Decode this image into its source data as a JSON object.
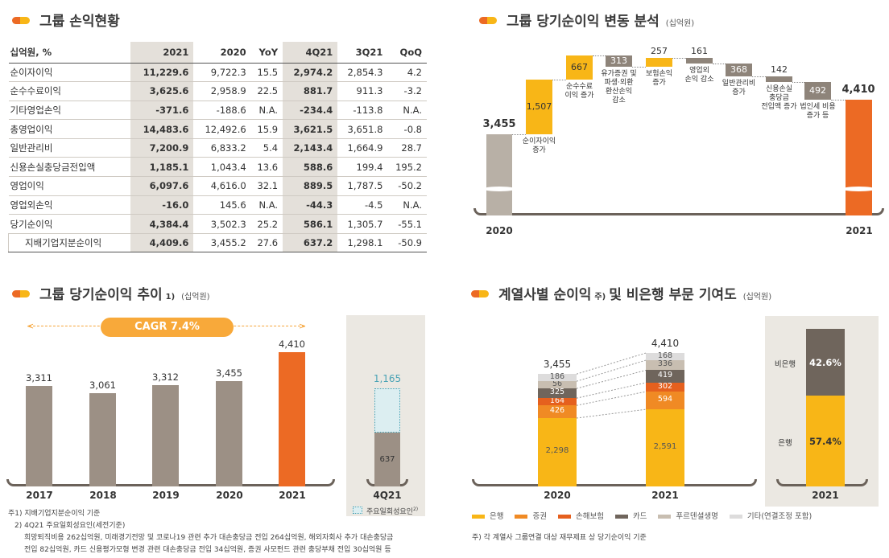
{
  "section1": {
    "title": "그룹 손익현황",
    "headers": [
      "십억원, %",
      "2021",
      "2020",
      "YoY",
      "4Q21",
      "3Q21",
      "QoQ"
    ],
    "rows": [
      [
        "순이자이익",
        "11,229.6",
        "9,722.3",
        "15.5",
        "2,974.2",
        "2,854.3",
        "4.2"
      ],
      [
        "순수수료이익",
        "3,625.6",
        "2,958.9",
        "22.5",
        "881.7",
        "911.3",
        "-3.2"
      ],
      [
        "기타영업손익",
        "-371.6",
        "-188.6",
        "N.A.",
        "-234.4",
        "-113.8",
        "N.A."
      ],
      [
        "총영업이익",
        "14,483.6",
        "12,492.6",
        "15.9",
        "3,621.5",
        "3,651.8",
        "-0.8"
      ],
      [
        "일반관리비",
        "7,200.9",
        "6,833.2",
        "5.4",
        "2,143.4",
        "1,664.9",
        "28.7"
      ],
      [
        "신용손실충당금전입액",
        "1,185.1",
        "1,043.4",
        "13.6",
        "588.6",
        "199.4",
        "195.2"
      ],
      [
        "영업이익",
        "6,097.6",
        "4,616.0",
        "32.1",
        "889.5",
        "1,787.5",
        "-50.2"
      ],
      [
        "영업외손익",
        "-16.0",
        "145.6",
        "N.A.",
        "-44.3",
        "-4.5",
        "N.A."
      ],
      [
        "당기순이익",
        "4,384.4",
        "3,502.3",
        "25.2",
        "586.1",
        "1,305.7",
        "-55.1"
      ],
      [
        "지배기업지분순이익",
        "4,409.6",
        "3,455.2",
        "27.6",
        "637.2",
        "1,298.1",
        "-50.9"
      ]
    ]
  },
  "section2": {
    "title": "그룹 당기순이익 변동 분석",
    "unit": "(십억원)"
  },
  "section3": {
    "title": "그룹 당기순이익 추이",
    "sup": "1)",
    "unit": "(십억원)",
    "cagr": "CAGR 7.4%",
    "quarter_panel": {
      "label": "4Q21",
      "legend": "주요일회성요인",
      "legend_sup": "2)"
    }
  },
  "section4": {
    "title": "계열사별 순이익",
    "title_sup": "주)",
    "title_rest": "및 비은행 부문 기여도",
    "unit": "(십억원)",
    "share_panel": {
      "year": "2021",
      "labels": [
        "비은행",
        "은행"
      ]
    },
    "footnote": "주) 각 계열사 그룹연결 대상 재무제표 상 당기순이익 기준"
  },
  "notes": [
    "주1) 지배기업지분순이익 기준",
    "2) 4Q21 주요일회성요인(세전기준)",
    "희망퇴직비용 262십억원, 미래경기전망 및 코로나19 관련 추가 대손충당금 전입 264십억원, 해외자회사 추가 대손충당금",
    "전입 82십억원, 카드 신용평가모형 변경 관련 대손충당금 전입 34십억원, 증권 사모펀드 관련 충당부채 전입 30십억원 등"
  ],
  "colors": {
    "yellow": "#f8b617",
    "orange": "#ec6a24",
    "gray": "#9c9085",
    "start_gray": "#b8b0a6",
    "neg_gray": "#8e847a",
    "teal": "#4aa3b5"
  },
  "chart_data": [
    {
      "type": "bar",
      "subtype": "waterfall",
      "start": {
        "label": "2020",
        "value": 3455,
        "display": "3,455"
      },
      "end": {
        "label": "2021",
        "value": 4410,
        "display": "4,410"
      },
      "steps": [
        {
          "label": "순이자이익\n증가",
          "value": 1507,
          "display": "1,507"
        },
        {
          "label": "순수수료\n이익 증가",
          "value": 667,
          "display": "667"
        },
        {
          "label": "유가증권 및\n파생·외환\n환산손익\n감소",
          "value": -313,
          "display": "313"
        },
        {
          "label": "보험손익\n증가",
          "value": 257,
          "display": "257"
        },
        {
          "label": "영업외\n손익 감소",
          "value": -161,
          "display": "161"
        },
        {
          "label": "일반관리비\n증가",
          "value": -368,
          "display": "368"
        },
        {
          "label": "신용손실\n충당금\n전입액 증가",
          "value": -142,
          "display": "142"
        },
        {
          "label": "법인세 비용\n증가 등",
          "value": -492,
          "display": "492"
        }
      ]
    },
    {
      "type": "bar",
      "categories": [
        "2017",
        "2018",
        "2019",
        "2020",
        "2021"
      ],
      "values": [
        3311,
        3061,
        3312,
        3455,
        4410
      ],
      "labels": [
        "3,311",
        "3,061",
        "3,312",
        "3,455",
        "4,410"
      ],
      "quarter": {
        "category": "4Q21",
        "base": 637,
        "total": 1165,
        "base_label": "637",
        "total_label": "1,165"
      }
    },
    {
      "type": "bar",
      "subtype": "stacked",
      "categories": [
        "2020",
        "2021"
      ],
      "totals": [
        "3,455",
        "4,410"
      ],
      "series": [
        {
          "name": "은행",
          "color": "#f8b617",
          "values": [
            2298,
            2591
          ],
          "labels": [
            "2,298",
            "2,591"
          ]
        },
        {
          "name": "증권",
          "color": "#f08a24",
          "values": [
            426,
            594
          ],
          "labels": [
            "426",
            "594"
          ]
        },
        {
          "name": "손해보험",
          "color": "#e5601e",
          "values": [
            164,
            302
          ],
          "labels": [
            "164",
            "302"
          ]
        },
        {
          "name": "카드",
          "color": "#6f655c",
          "values": [
            325,
            419
          ],
          "labels": [
            "325",
            "419"
          ]
        },
        {
          "name": "푸르덴셜생명",
          "color": "#c8beb1",
          "values": [
            56,
            336
          ],
          "labels": [
            "56",
            "336"
          ]
        },
        {
          "name": "기타(연결조정 포함)",
          "color": "#dddcdc",
          "values": [
            186,
            168
          ],
          "labels": [
            "186",
            "168"
          ]
        }
      ]
    },
    {
      "type": "bar",
      "subtype": "stacked-percent",
      "categories": [
        "2021"
      ],
      "series": [
        {
          "name": "은행",
          "value": 57.4,
          "label": "57.4%",
          "color": "#f8b617"
        },
        {
          "name": "비은행",
          "value": 42.6,
          "label": "42.6%",
          "color": "#6f655c"
        }
      ]
    }
  ]
}
